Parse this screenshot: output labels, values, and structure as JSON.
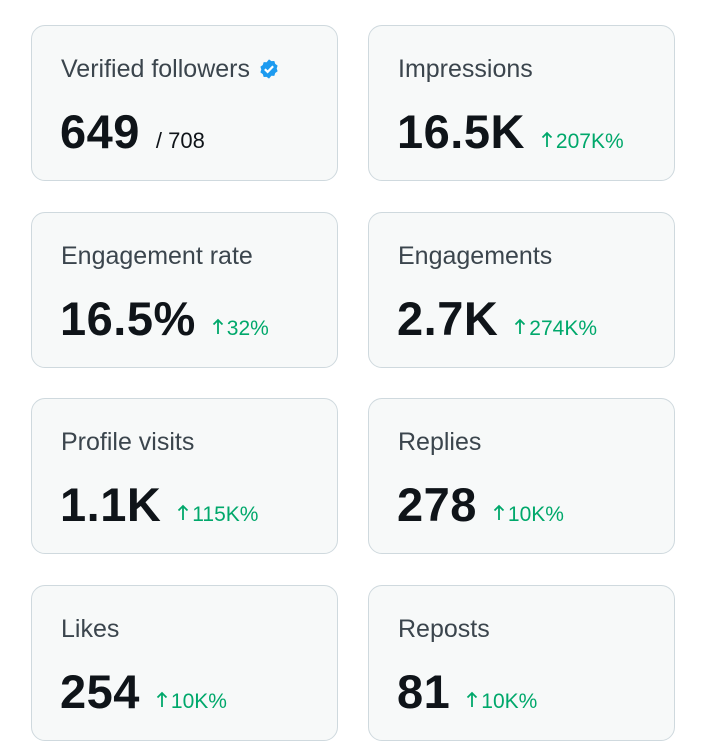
{
  "cards": [
    {
      "label": "Verified followers",
      "value": "649",
      "total": "/ 708"
    },
    {
      "label": "Impressions",
      "value": "16.5K",
      "change": "207K%"
    },
    {
      "label": "Engagement rate",
      "value": "16.5%",
      "change": "32%"
    },
    {
      "label": "Engagements",
      "value": "2.7K",
      "change": "274K%"
    },
    {
      "label": "Profile visits",
      "value": "1.1K",
      "change": "115K%"
    },
    {
      "label": "Replies",
      "value": "278",
      "change": "10K%"
    },
    {
      "label": "Likes",
      "value": "254",
      "change": "10K%"
    },
    {
      "label": "Reposts",
      "value": "81",
      "change": "10K%"
    }
  ]
}
